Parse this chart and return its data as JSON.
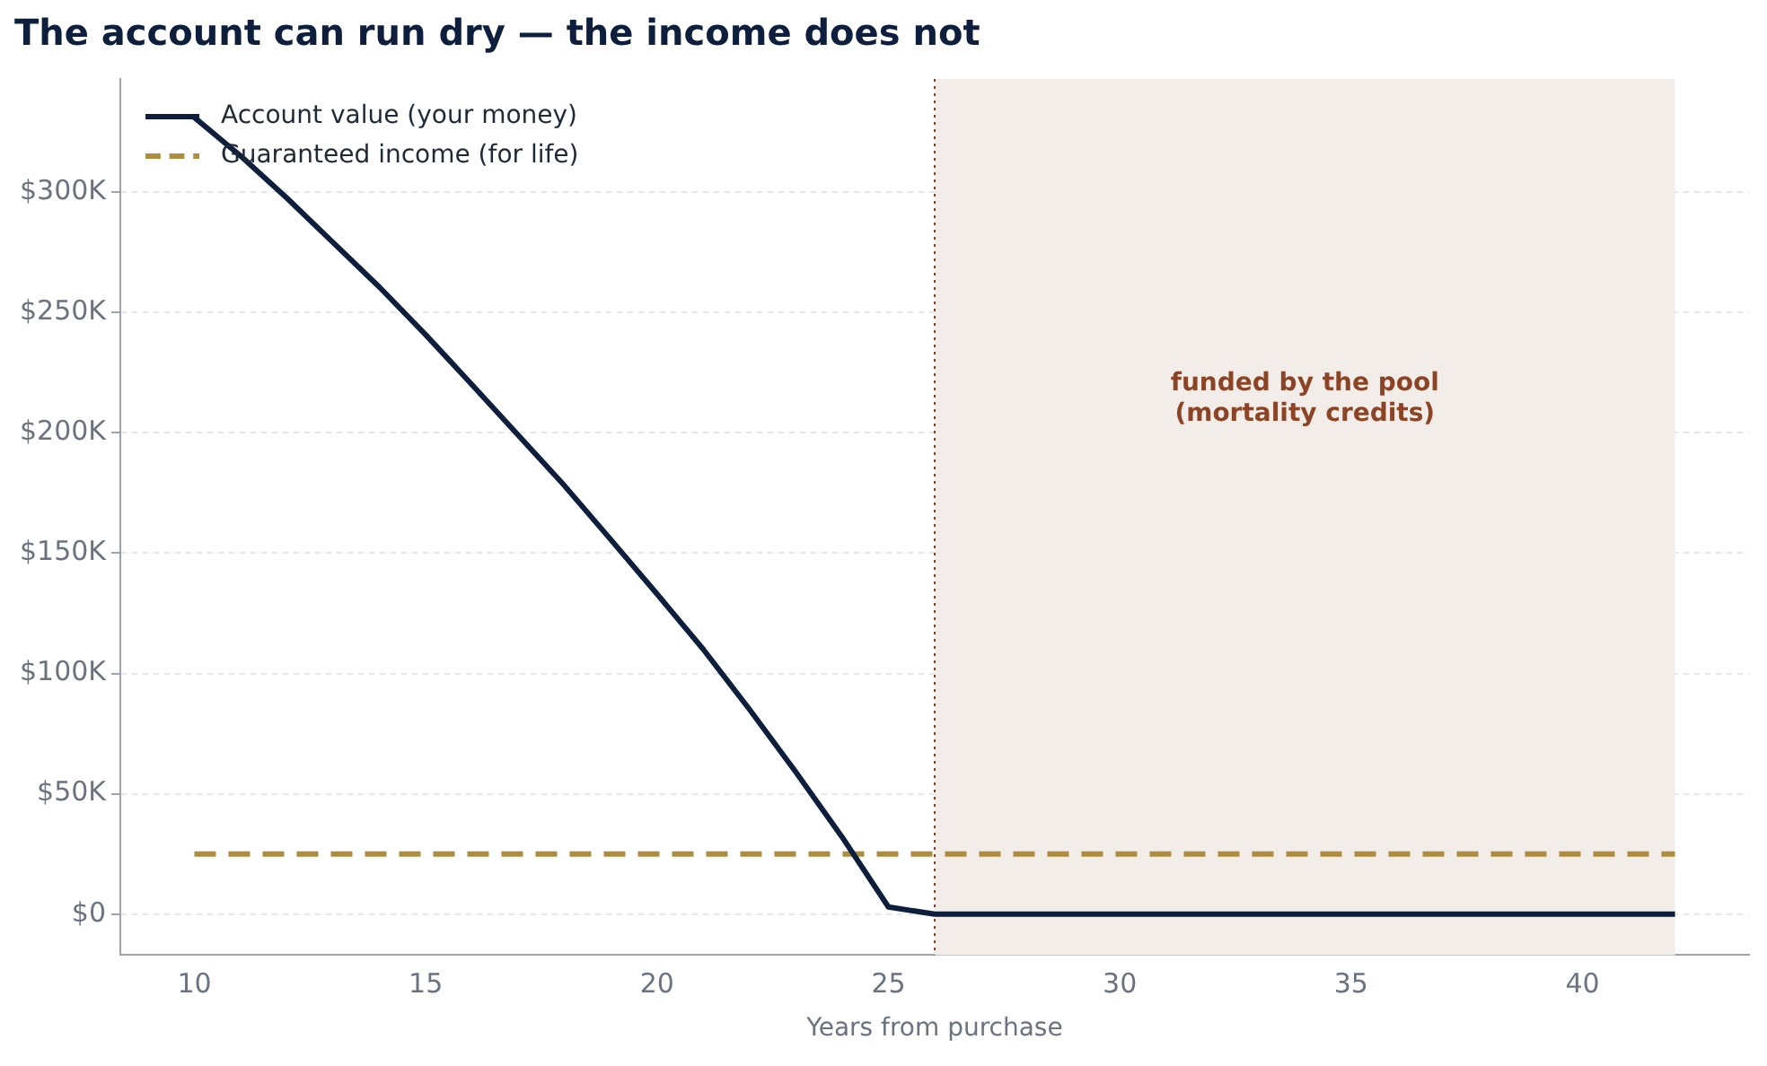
{
  "chart_data": {
    "type": "line",
    "title": "The account can run dry — the income does not",
    "xlabel": "Years from purchase",
    "series": [
      {
        "name": "Account value (your money)",
        "color": "#0d1f3c",
        "line_style": "solid",
        "x": [
          10,
          11,
          12,
          13,
          14,
          15,
          16,
          17,
          18,
          19,
          20,
          21,
          22,
          23,
          24,
          25,
          26,
          27,
          28,
          29,
          30,
          31,
          32,
          33,
          34,
          35,
          36,
          37,
          38,
          39,
          40,
          41,
          42
        ],
        "values": [
          331000,
          315000,
          297500,
          279000,
          260500,
          240700,
          220000,
          199000,
          178000,
          155600,
          133000,
          110000,
          85000,
          59000,
          32000,
          3000,
          0,
          0,
          0,
          0,
          0,
          0,
          0,
          0,
          0,
          0,
          0,
          0,
          0,
          0,
          0,
          0,
          0
        ]
      },
      {
        "name": "Guaranteed income (for life)",
        "color": "#b08d3e",
        "line_style": "dashed",
        "x": [
          10,
          42
        ],
        "values": [
          25000,
          25000
        ]
      }
    ],
    "xlim": [
      8.4,
      43.6
    ],
    "xticks": [
      10,
      15,
      20,
      25,
      30,
      35,
      40
    ],
    "ylim": [
      -17000,
      347000
    ],
    "yticks": [
      {
        "value": 0,
        "label": "$0"
      },
      {
        "value": 50000,
        "label": "$50K"
      },
      {
        "value": 100000,
        "label": "$100K"
      },
      {
        "value": 150000,
        "label": "$150K"
      },
      {
        "value": 200000,
        "label": "$200K"
      },
      {
        "value": 250000,
        "label": "$250K"
      },
      {
        "value": 300000,
        "label": "$300K"
      }
    ],
    "grid": "y",
    "legend": "top left",
    "marker": "none",
    "ref_lines": [
      {
        "axis": "x",
        "value": 26,
        "color": "#8b3a2a",
        "line_style": "dotted"
      }
    ],
    "bands": [
      {
        "axis": "x",
        "from": 26,
        "to": 42,
        "color": "#f2ede8"
      }
    ],
    "annotations": [
      "funded by the pool\n(mortality credits)"
    ]
  }
}
